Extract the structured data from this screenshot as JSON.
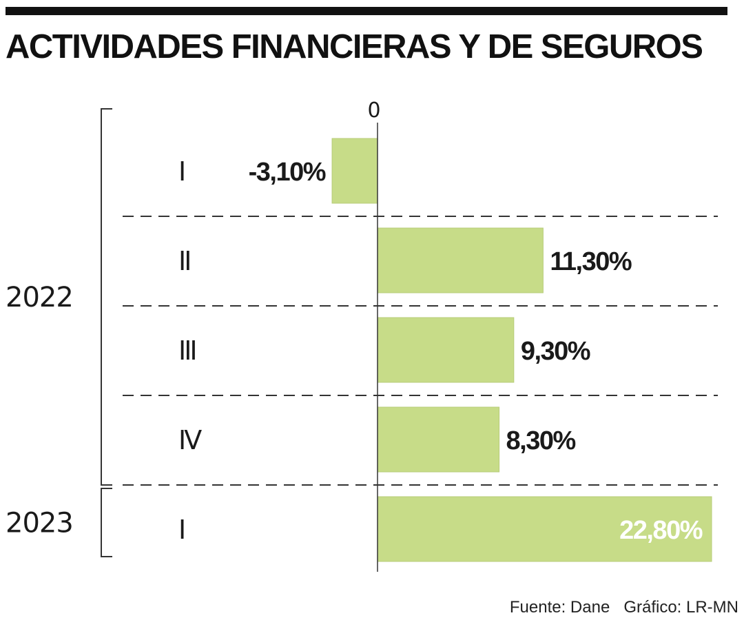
{
  "title": "ACTIVIDADES FINANCIERAS Y DE SEGUROS",
  "footer": {
    "source": "Fuente: Dane",
    "credit": "Gráfico: LR-MN"
  },
  "colors": {
    "bar": "#c7dc88",
    "label_dark": "#1a1a1a",
    "label_light": "#ffffff",
    "axis": "#333333"
  },
  "chart_data": {
    "type": "bar",
    "orientation": "horizontal",
    "x_tick_labels": [
      "0"
    ],
    "groups": [
      {
        "label": "2022",
        "categories": [
          "I",
          "II",
          "III",
          "IV"
        ]
      },
      {
        "label": "2023",
        "categories": [
          "I"
        ]
      }
    ],
    "categories": [
      "2022 I",
      "2022 II",
      "2022 III",
      "2022 IV",
      "2023 I"
    ],
    "bars": [
      {
        "group": "2022",
        "quarter": "I",
        "value": -3.1,
        "label": "-3,10%"
      },
      {
        "group": "2022",
        "quarter": "II",
        "value": 11.3,
        "label": "11,30%"
      },
      {
        "group": "2022",
        "quarter": "III",
        "value": 9.3,
        "label": "9,30%"
      },
      {
        "group": "2022",
        "quarter": "IV",
        "value": 8.3,
        "label": "8,30%"
      },
      {
        "group": "2023",
        "quarter": "I",
        "value": 22.8,
        "label": "22,80%"
      }
    ],
    "xlim": [
      -3.1,
      22.8
    ],
    "grid": false,
    "separators": "dashed",
    "legend": "none"
  }
}
